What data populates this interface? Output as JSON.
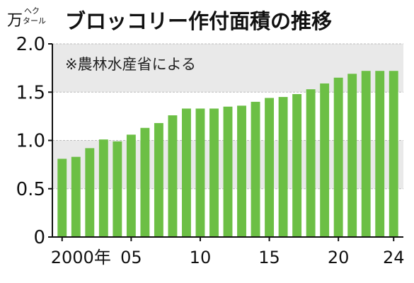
{
  "chart_data": {
    "type": "bar",
    "title": "ブロッコリー作付面積の推移",
    "unit_main": "万",
    "unit_sub_top": "ヘク",
    "unit_sub_bottom": "タール",
    "source_note": "※農林水産省による",
    "x": [
      2000,
      2001,
      2002,
      2003,
      2004,
      2005,
      2006,
      2007,
      2008,
      2009,
      2010,
      2011,
      2012,
      2013,
      2014,
      2015,
      2016,
      2017,
      2018,
      2019,
      2020,
      2021,
      2022,
      2023,
      2024
    ],
    "values": [
      0.81,
      0.83,
      0.92,
      1.01,
      0.99,
      1.06,
      1.13,
      1.18,
      1.26,
      1.33,
      1.33,
      1.33,
      1.35,
      1.36,
      1.4,
      1.44,
      1.45,
      1.48,
      1.53,
      1.59,
      1.65,
      1.69,
      1.72,
      1.72,
      1.72
    ],
    "ylim": [
      0,
      2.0
    ],
    "y_ticks": [
      "0",
      "0.5",
      "1.0",
      "1.5",
      "2.0"
    ],
    "x_tick_labels": [
      {
        "year": 2000,
        "label": "2000年"
      },
      {
        "year": 2005,
        "label": "05"
      },
      {
        "year": 2010,
        "label": "10"
      },
      {
        "year": 2015,
        "label": "15"
      },
      {
        "year": 2020,
        "label": "20"
      },
      {
        "year": 2024,
        "label": "24"
      }
    ],
    "bar_color": "#6cbf45",
    "band_color": "#e9e9e9",
    "grid": true
  }
}
